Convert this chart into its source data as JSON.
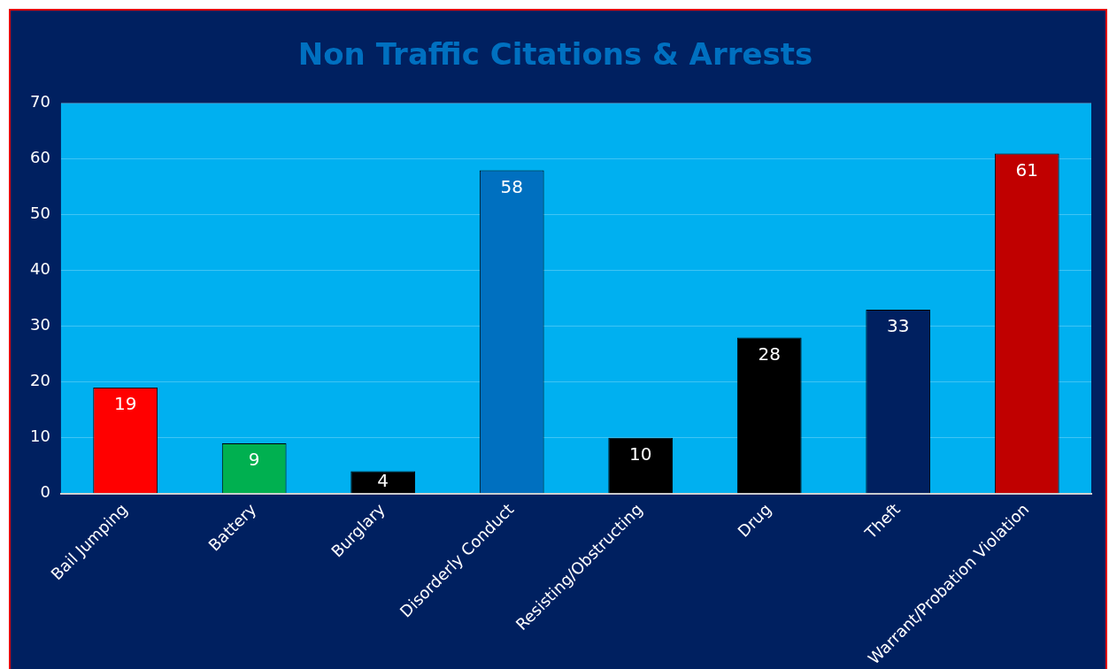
{
  "chart_data": {
    "type": "bar",
    "title": "Non Traffic Citations & Arrests",
    "categories": [
      "Bail Jumping",
      "Battery",
      "Burglary",
      "Disorderly Conduct",
      "Resisting/Obstructing",
      "Drug",
      "Theft",
      "Warrant/Probation Violation"
    ],
    "values": [
      19,
      9,
      4,
      58,
      10,
      28,
      33,
      61
    ],
    "colors": [
      "#ff0000",
      "#00b050",
      "#000000",
      "#0070c0",
      "#000000",
      "#000000",
      "#002060",
      "#c00000"
    ],
    "ylim": [
      0,
      70
    ],
    "yticks": [
      0,
      10,
      20,
      30,
      40,
      50,
      60,
      70
    ],
    "grid": "y",
    "legend": false,
    "data_labels": true
  }
}
